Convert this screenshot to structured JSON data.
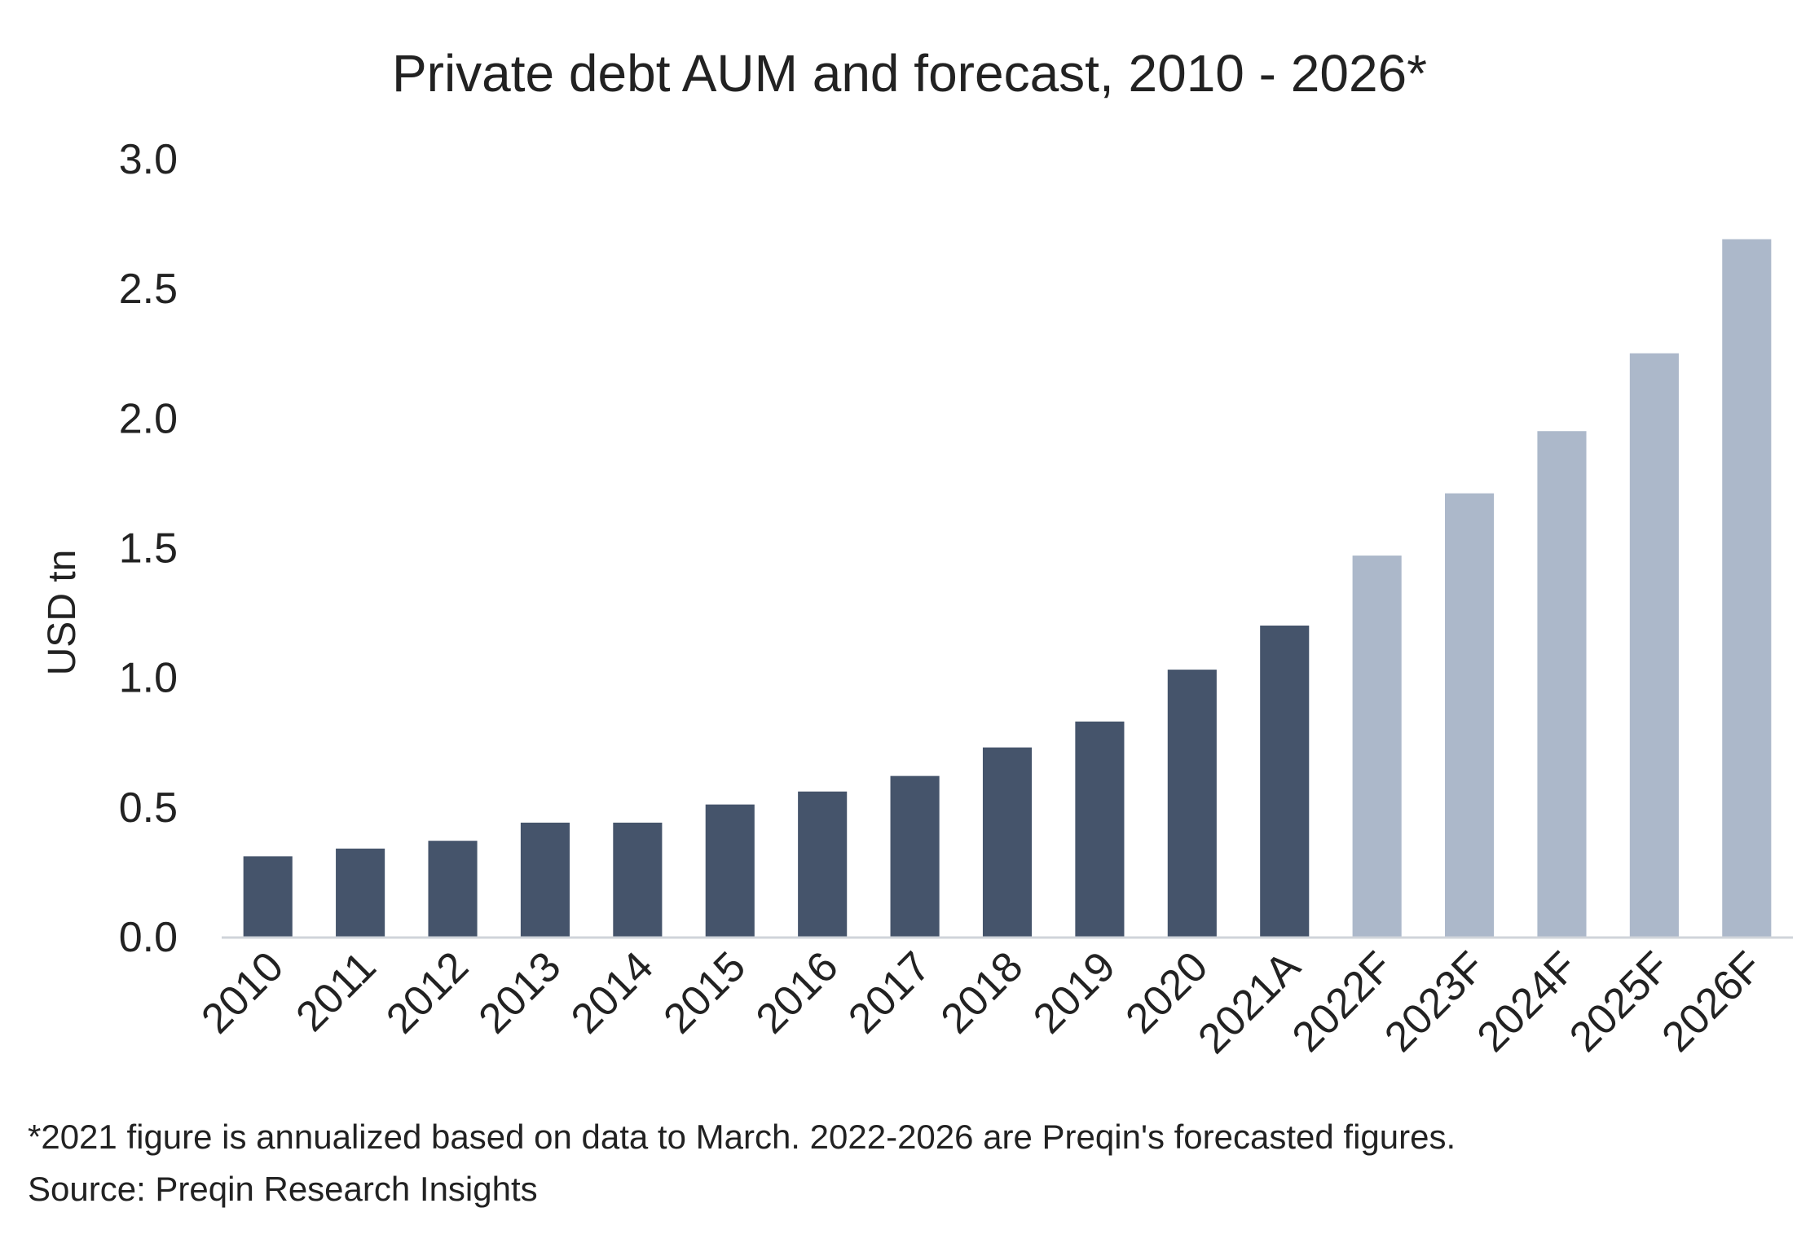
{
  "chart_data": {
    "type": "bar",
    "title": "Private debt AUM and forecast, 2010 - 2026*",
    "xlabel": "",
    "ylabel": "USD tn",
    "ylim": [
      0,
      3.0
    ],
    "yticks": [
      "0.0",
      "0.5",
      "1.0",
      "1.5",
      "2.0",
      "2.5",
      "3.0"
    ],
    "grid": false,
    "categories": [
      "2010",
      "2011",
      "2012",
      "2013",
      "2014",
      "2015",
      "2016",
      "2017",
      "2018",
      "2019",
      "2020",
      "2021A",
      "2022F",
      "2023F",
      "2024F",
      "2025F",
      "2026F"
    ],
    "values": [
      0.31,
      0.34,
      0.37,
      0.44,
      0.44,
      0.51,
      0.56,
      0.62,
      0.73,
      0.83,
      1.03,
      1.2,
      1.47,
      1.71,
      1.95,
      2.25,
      2.69
    ],
    "colors": {
      "actual": "#45546b",
      "forecast": "#acb8ca",
      "axis": "#d0d4da"
    },
    "forecast_from_index": 12
  },
  "footnote": "*2021 figure is annualized based on data to March. 2022-2026 are Preqin's forecasted figures.",
  "source": "Source: Preqin Research Insights"
}
